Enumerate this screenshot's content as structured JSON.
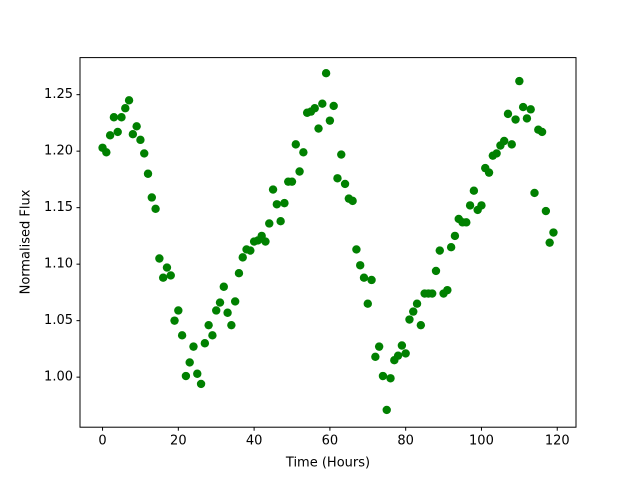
{
  "chart_data": {
    "type": "scatter",
    "xlabel": "Time (Hours)",
    "ylabel": "Normalised Flux",
    "color": "#008000",
    "x": [
      0,
      1,
      2,
      3,
      4,
      5,
      6,
      7,
      8,
      9,
      10,
      11,
      12,
      13,
      14,
      15,
      16,
      17,
      18,
      19,
      20,
      21,
      22,
      23,
      24,
      25,
      26,
      27,
      28,
      29,
      30,
      31,
      32,
      33,
      34,
      35,
      36,
      37,
      38,
      39,
      40,
      41,
      42,
      43,
      44,
      45,
      46,
      47,
      48,
      49,
      50,
      51,
      52,
      53,
      54,
      55,
      56,
      57,
      58,
      59,
      60,
      61,
      62,
      63,
      64,
      65,
      66,
      67,
      68,
      69,
      70,
      71,
      72,
      73,
      74,
      75,
      76,
      77,
      78,
      79,
      80,
      81,
      82,
      83,
      84,
      85,
      86,
      87,
      88,
      89,
      90,
      91,
      92,
      93,
      94,
      95,
      96,
      97,
      98,
      99,
      100,
      101,
      102,
      103,
      104,
      105,
      106,
      107,
      108,
      109,
      110,
      111,
      112,
      113,
      114,
      115,
      116,
      117,
      118,
      119
    ],
    "values": [
      1.203,
      1.199,
      1.214,
      1.23,
      1.217,
      1.23,
      1.238,
      1.245,
      1.215,
      1.222,
      1.21,
      1.198,
      1.18,
      1.159,
      1.149,
      1.105,
      1.088,
      1.097,
      1.09,
      1.05,
      1.059,
      1.037,
      1.001,
      1.013,
      1.027,
      1.003,
      0.994,
      1.03,
      1.046,
      1.037,
      1.059,
      1.066,
      1.08,
      1.057,
      1.046,
      1.067,
      1.092,
      1.106,
      1.113,
      1.112,
      1.12,
      1.121,
      1.125,
      1.12,
      1.136,
      1.166,
      1.153,
      1.138,
      1.154,
      1.173,
      1.173,
      1.206,
      1.182,
      1.199,
      1.234,
      1.235,
      1.238,
      1.22,
      1.242,
      1.269,
      1.227,
      1.24,
      1.176,
      1.197,
      1.171,
      1.158,
      1.156,
      1.113,
      1.099,
      1.088,
      1.065,
      1.086,
      1.018,
      1.027,
      1.001,
      0.971,
      0.999,
      1.015,
      1.019,
      1.028,
      1.021,
      1.051,
      1.058,
      1.065,
      1.046,
      1.074,
      1.074,
      1.074,
      1.094,
      1.112,
      1.074,
      1.077,
      1.115,
      1.125,
      1.14,
      1.137,
      1.137,
      1.152,
      1.165,
      1.148,
      1.152,
      1.185,
      1.181,
      1.196,
      1.198,
      1.205,
      1.209,
      1.233,
      1.206,
      1.228,
      1.262,
      1.239,
      1.229,
      1.237,
      1.163,
      1.219,
      1.217,
      1.147,
      1.119,
      1.128
    ],
    "xlim": [
      -5.95,
      124.95
    ],
    "ylim": [
      0.9557,
      1.2828
    ],
    "xticks": [
      0,
      20,
      40,
      60,
      80,
      100,
      120
    ],
    "yticks": [
      {
        "value": 1.0,
        "label": "1.00"
      },
      1.05,
      {
        "value": 1.1,
        "label": "1.10"
      },
      1.15,
      {
        "value": 1.2,
        "label": "1.20"
      },
      1.25
    ]
  }
}
